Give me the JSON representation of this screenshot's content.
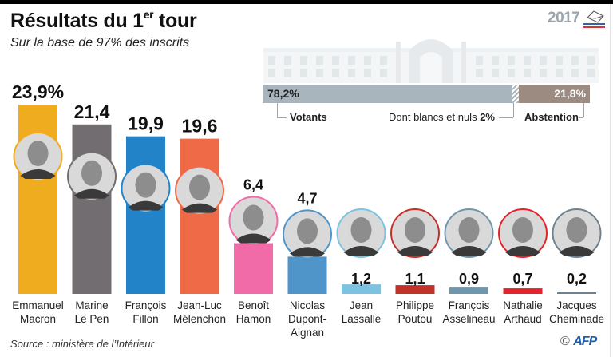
{
  "header": {
    "title": "Résultats du 1",
    "title_sup": "er",
    "title_end": " tour",
    "subtitle": "Sur la base de 97% des inscrits",
    "logo_year": "2017"
  },
  "turnout": {
    "votants_pct": 78.2,
    "votants_label_value": "78,2%",
    "votants_label": "Votants",
    "blancs_pct": 2,
    "blancs_label": "Dont blancs et nuls ",
    "blancs_value": "2%",
    "abstention_pct": 21.8,
    "abstention_label_value": "21,8%",
    "abstention_label": "Abstention",
    "colors": {
      "votants": "#a9b5bc",
      "abstention": "#9c8b80"
    }
  },
  "chart_data": {
    "type": "bar",
    "title": "Résultats du 1er tour",
    "subtitle": "Sur la base de 97% des inscrits",
    "xlabel": "",
    "ylabel": "%",
    "ylim": [
      0,
      23.9
    ],
    "unit": "%",
    "categories": [
      "Emmanuel Macron",
      "Marine Le Pen",
      "François Fillon",
      "Jean-Luc Mélenchon",
      "Benoît Hamon",
      "Nicolas Dupont-Aignan",
      "Jean Lassalle",
      "Philippe Poutou",
      "François Asselineau",
      "Nathalie Arthaud",
      "Jacques Cheminade"
    ],
    "name_lines": [
      [
        "Emmanuel",
        "Macron"
      ],
      [
        "Marine",
        "Le Pen"
      ],
      [
        "François",
        "Fillon"
      ],
      [
        "Jean-Luc",
        "Mélenchon"
      ],
      [
        "Benoît",
        "Hamon"
      ],
      [
        "Nicolas",
        "Dupont-",
        "Aignan"
      ],
      [
        "Jean",
        "Lassalle"
      ],
      [
        "Philippe",
        "Poutou"
      ],
      [
        "François",
        "Asselineau"
      ],
      [
        "Nathalie",
        "Arthaud"
      ],
      [
        "Jacques",
        "Cheminade"
      ]
    ],
    "values": [
      23.9,
      21.4,
      19.9,
      19.6,
      6.4,
      4.7,
      1.2,
      1.1,
      0.9,
      0.7,
      0.2
    ],
    "labels": [
      "23,9%",
      "21,4",
      "19,9",
      "19,6",
      "6,4",
      "4,7",
      "1,2",
      "1,1",
      "0,9",
      "0,7",
      "0,2"
    ],
    "colors": [
      "#f0ac1f",
      "#716d71",
      "#2283c9",
      "#ef6a46",
      "#f06ba8",
      "#4f95c9",
      "#7dc2e0",
      "#c0322a",
      "#6f96ab",
      "#e4242b",
      "#6f8290"
    ],
    "legend": "none",
    "grid": false
  },
  "footer": {
    "source": "Source : ministère de l’Intérieur",
    "copyright": "©",
    "agency": "AFP"
  }
}
